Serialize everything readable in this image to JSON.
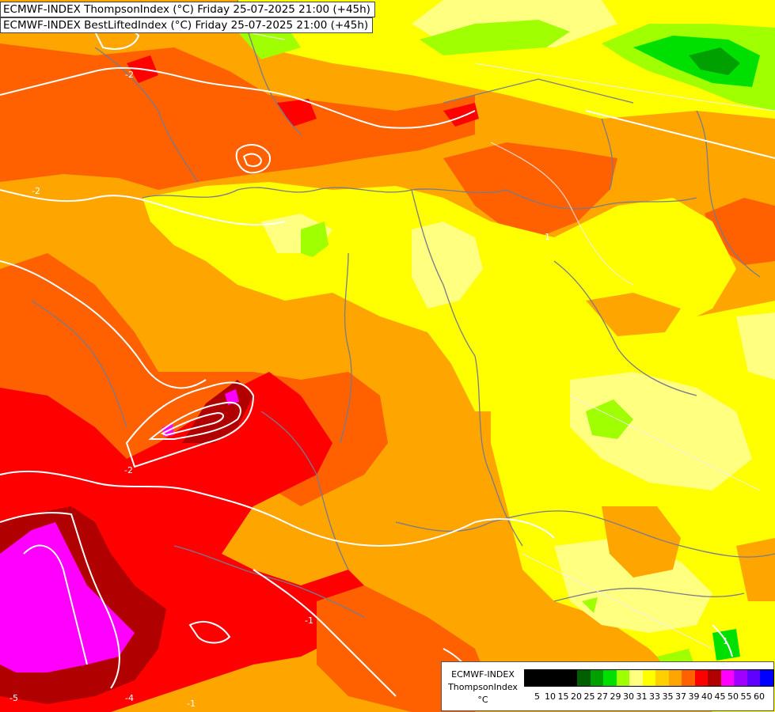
{
  "header": {
    "line1": "ECMWF-INDEX ThompsonIndex (°C) Friday 25-07-2025 21:00 (+45h)",
    "line2": "ECMWF-INDEX BestLiftedIndex (°C) Friday 25-07-2025 21:00 (+45h)"
  },
  "legend": {
    "title": "ECMWF-INDEX",
    "subtitle": "ThompsonIndex",
    "unit": "°C",
    "ticks": [
      "5",
      "10",
      "15",
      "20",
      "25",
      "27",
      "29",
      "30",
      "31",
      "33",
      "35",
      "37",
      "39",
      "40",
      "45",
      "50",
      "55",
      "60"
    ],
    "colors": [
      "#000000",
      "#000000",
      "#000000",
      "#000000",
      "#005f00",
      "#00a000",
      "#00e000",
      "#a0ff00",
      "#ffff80",
      "#ffff00",
      "#ffd000",
      "#ffa500",
      "#ff6000",
      "#ff0000",
      "#b00000",
      "#ff00ff",
      "#a000ff",
      "#6000ff",
      "#0000ff"
    ]
  },
  "contour_labels": [
    "-2",
    "-2",
    "-1",
    "-5",
    "-4",
    "1",
    "1",
    "-2",
    "-1"
  ]
}
